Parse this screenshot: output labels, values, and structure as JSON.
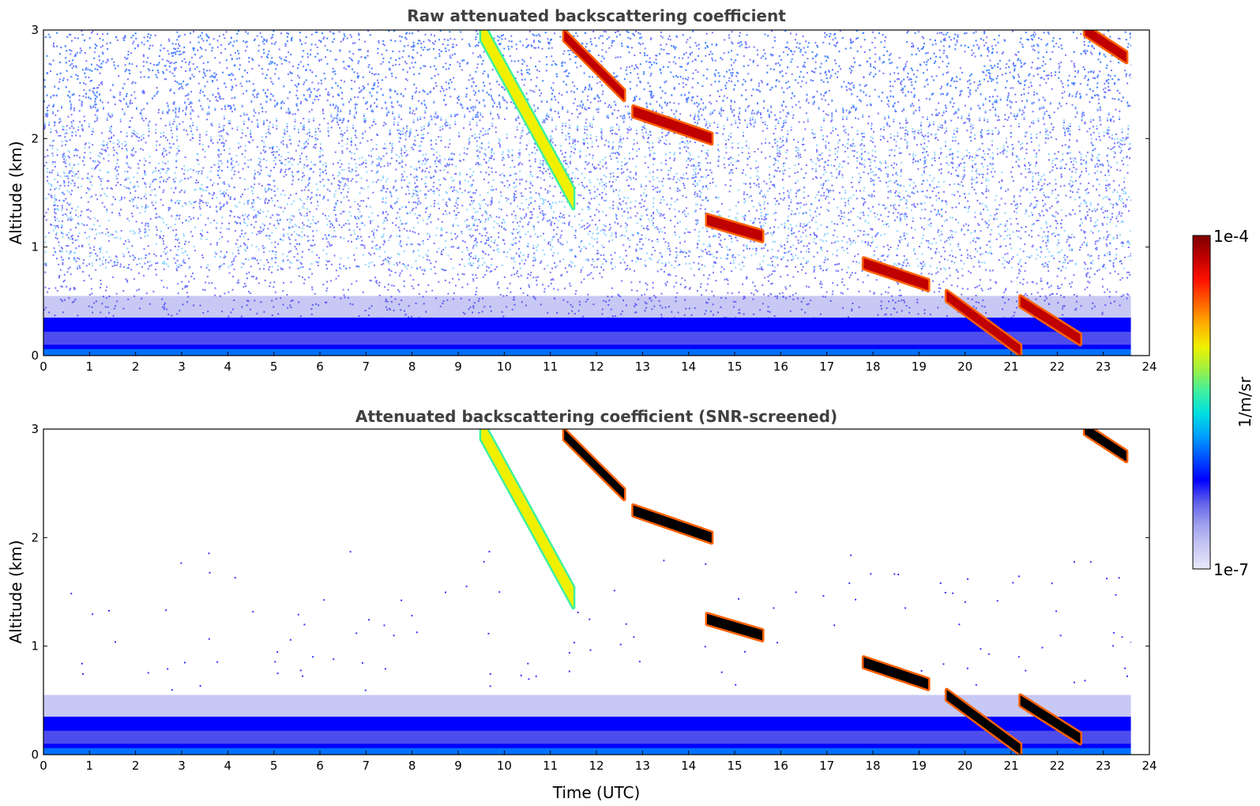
{
  "chart_data": [
    {
      "type": "heatmap",
      "title": "Raw attenuated backscattering coefficient",
      "xlabel": "",
      "ylabel": "Altitude (km)",
      "xlim": [
        0,
        24
      ],
      "ylim": [
        0,
        3
      ],
      "xticks": [
        "0",
        "1",
        "2",
        "3",
        "4",
        "5",
        "6",
        "7",
        "8",
        "9",
        "10",
        "11",
        "12",
        "13",
        "14",
        "15",
        "16",
        "17",
        "18",
        "19",
        "20",
        "21",
        "22",
        "23",
        "24"
      ],
      "yticks": [
        "0",
        "1",
        "2",
        "3"
      ],
      "data_end_time": 23.6,
      "boundary_layer_top_km": 0.35,
      "features": [
        {
          "name": "cirrus layer",
          "time": [
            11.3,
            12.6
          ],
          "altitude_km": [
            2.95,
            2.4
          ],
          "intensity": "high"
        },
        {
          "name": "cirrus layer",
          "time": [
            12.8,
            14.5
          ],
          "altitude_km": [
            2.25,
            2.0
          ],
          "intensity": "high"
        },
        {
          "name": "mid-level cloud",
          "time": [
            14.4,
            15.6
          ],
          "altitude_km": [
            1.25,
            1.1
          ],
          "intensity": "high"
        },
        {
          "name": "descending cloud",
          "time": [
            17.8,
            19.2
          ],
          "altitude_km": [
            0.85,
            0.65
          ],
          "intensity": "high"
        },
        {
          "name": "low cloud",
          "time": [
            19.6,
            21.2
          ],
          "altitude_km": [
            0.55,
            0.05
          ],
          "intensity": "high"
        },
        {
          "name": "low cloud",
          "time": [
            21.2,
            22.5
          ],
          "altitude_km": [
            0.5,
            0.15
          ],
          "intensity": "high"
        },
        {
          "name": "fall streak",
          "time": [
            9.5,
            11.5
          ],
          "altitude_km": [
            3.0,
            1.45
          ],
          "intensity": "medium"
        },
        {
          "name": "high cloud",
          "time": [
            22.6,
            23.5
          ],
          "altitude_km": [
            3.0,
            2.75
          ],
          "intensity": "high"
        }
      ]
    },
    {
      "type": "heatmap",
      "title": "Attenuated backscattering coefficient (SNR-screened)",
      "xlabel": "Time (UTC)",
      "ylabel": "Altitude (km)",
      "xlim": [
        0,
        24
      ],
      "ylim": [
        0,
        3
      ],
      "xticks": [
        "0",
        "1",
        "2",
        "3",
        "4",
        "5",
        "6",
        "7",
        "8",
        "9",
        "10",
        "11",
        "12",
        "13",
        "14",
        "15",
        "16",
        "17",
        "18",
        "19",
        "20",
        "21",
        "22",
        "23",
        "24"
      ],
      "yticks": [
        "0",
        "1",
        "2",
        "3"
      ],
      "data_end_time": 23.6,
      "screening": "low-SNR pixels removed; saturated cloud cores shown black"
    }
  ],
  "colorbar": {
    "label": "1/m/sr",
    "max_label": "1e-4",
    "min_label": "1e-7",
    "colors": [
      "#e8e8fa",
      "#c8c8f4",
      "#a0a0ee",
      "#6060ea",
      "#0000ff",
      "#0050ff",
      "#00a0ff",
      "#00e0e0",
      "#40f0a0",
      "#a0f040",
      "#f0f000",
      "#ffb000",
      "#ff6000",
      "#ff1000",
      "#c00000",
      "#800000"
    ]
  },
  "colors": {
    "background": "#ffffff",
    "title": "#404040",
    "saturated": "#000000"
  }
}
